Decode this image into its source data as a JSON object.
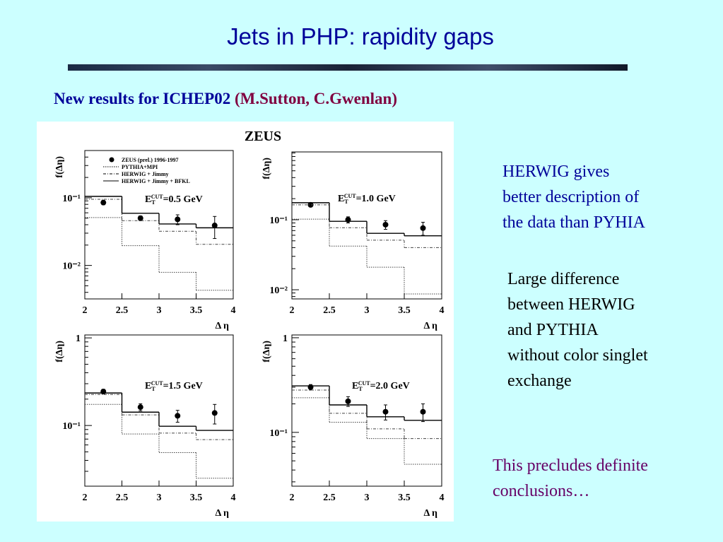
{
  "title": "Jets in PHP: rapidity gaps",
  "subtitle": {
    "main": "New results for ICHEP02",
    "authors": "(M.Sutton, C.Gwenlan)"
  },
  "figure_title": "ZEUS",
  "notes": [
    {
      "lines": [
        "HERWIG gives",
        "better description of",
        "the data than PYHIA"
      ],
      "color": "#000099"
    },
    {
      "lines": [
        "Large difference",
        "between HERWIG",
        "and PYTHIA",
        "without color singlet",
        "exchange"
      ],
      "color": "#000000"
    },
    {
      "lines": [
        "This precludes definite",
        "conclusions…"
      ],
      "color": "#660066"
    }
  ],
  "chart_data": [
    {
      "type": "histogram",
      "ylabel": "f(Δη)",
      "xlabel": "Δ η",
      "annotation": {
        "symbol": "E",
        "sub": "T",
        "sup": "CUT",
        "text": "=0.5 GeV"
      },
      "bins": [
        2,
        2.5,
        3,
        3.5,
        4
      ],
      "xlim": [
        2,
        4
      ],
      "xticks": [
        2,
        2.5,
        3,
        3.5,
        4
      ],
      "log_y": true,
      "ylim": [
        0.0032,
        0.5
      ],
      "yticks": [
        {
          "value": 0.01,
          "label": "10⁻²"
        },
        {
          "value": 0.1,
          "label": "10⁻¹"
        }
      ],
      "legend": true,
      "series": [
        {
          "name": "ZEUS (prel.) 1996-1997",
          "style": "points",
          "values": [
            0.085,
            0.05,
            0.048,
            0.039
          ],
          "errors": [
            0.006,
            0.004,
            0.008,
            0.014
          ]
        },
        {
          "name": "PYTHIA+MPI",
          "style": "dotted",
          "values": [
            0.051,
            0.0196,
            0.0079,
            0.0043
          ]
        },
        {
          "name": "HERWIG + Jimmy",
          "style": "dashed",
          "values": [
            0.095,
            0.046,
            0.032,
            0.0205
          ]
        },
        {
          "name": "HERWIG + Jimmy + BFKL",
          "style": "solid",
          "values": [
            0.105,
            0.059,
            0.041,
            0.036
          ]
        }
      ]
    },
    {
      "type": "histogram",
      "ylabel": "f(Δη)",
      "xlabel": "Δ η",
      "annotation": {
        "symbol": "E",
        "sub": "T",
        "sup": "CUT",
        "text": "=1.0 GeV"
      },
      "bins": [
        2,
        2.5,
        3,
        3.5,
        4
      ],
      "xlim": [
        2,
        4
      ],
      "xticks": [
        2,
        2.5,
        3,
        3.5,
        4
      ],
      "log_y": true,
      "ylim": [
        0.0074,
        0.93
      ],
      "yticks": [
        {
          "value": 0.01,
          "label": "10⁻²"
        },
        {
          "value": 0.1,
          "label": "10⁻¹"
        }
      ],
      "legend": false,
      "series": [
        {
          "style": "points",
          "values": [
            0.163,
            0.1,
            0.085,
            0.076
          ],
          "errors": [
            0.01,
            0.01,
            0.012,
            0.016
          ]
        },
        {
          "style": "dotted",
          "values": [
            0.102,
            0.042,
            0.021,
            0.0087
          ]
        },
        {
          "style": "dashed",
          "values": [
            0.163,
            0.077,
            0.051,
            0.04
          ]
        },
        {
          "style": "solid",
          "values": [
            0.175,
            0.095,
            0.064,
            0.059
          ]
        }
      ]
    },
    {
      "type": "histogram",
      "ylabel": "f(Δη)",
      "xlabel": "Δ η",
      "annotation": {
        "symbol": "E",
        "sub": "T",
        "sup": "CUT",
        "text": "=1.5 GeV"
      },
      "bins": [
        2,
        2.5,
        3,
        3.5,
        4
      ],
      "xlim": [
        2,
        4
      ],
      "xticks": [
        2,
        2.5,
        3,
        3.5,
        4
      ],
      "log_y": true,
      "ylim": [
        0.0203,
        1.08
      ],
      "yticks": [
        {
          "value": 0.1,
          "label": "10⁻¹"
        },
        1
      ],
      "legend": false,
      "series": [
        {
          "style": "points",
          "values": [
            0.244,
            0.162,
            0.129,
            0.139
          ],
          "errors": [
            0.015,
            0.015,
            0.02,
            0.035
          ]
        },
        {
          "style": "dotted",
          "values": [
            0.174,
            0.08,
            0.049,
            0.025
          ]
        },
        {
          "style": "dashed",
          "values": [
            0.226,
            0.132,
            0.082,
            0.069
          ]
        },
        {
          "style": "solid",
          "values": [
            0.235,
            0.142,
            0.098,
            0.088
          ]
        }
      ]
    },
    {
      "type": "histogram",
      "ylabel": "f(Δη)",
      "xlabel": "Δ η",
      "annotation": {
        "symbol": "E",
        "sub": "T",
        "sup": "CUT",
        "text": "=2.0 GeV"
      },
      "bins": [
        2,
        2.5,
        3,
        3.5,
        4
      ],
      "xlim": [
        2,
        4
      ],
      "xticks": [
        2,
        2.5,
        3,
        3.5,
        4
      ],
      "log_y": true,
      "ylim": [
        0.027,
        1.07
      ],
      "yticks": [
        {
          "value": 0.1,
          "label": "10⁻¹"
        },
        1
      ],
      "legend": false,
      "series": [
        {
          "style": "points",
          "values": [
            0.3,
            0.213,
            0.165,
            0.165
          ],
          "errors": [
            0.02,
            0.025,
            0.03,
            0.035
          ]
        },
        {
          "style": "dotted",
          "values": [
            0.232,
            0.128,
            0.086,
            0.046
          ]
        },
        {
          "style": "dashed",
          "values": [
            0.28,
            0.159,
            0.109,
            0.086
          ]
        },
        {
          "style": "solid",
          "values": [
            0.31,
            0.195,
            0.146,
            0.134
          ]
        }
      ]
    }
  ]
}
